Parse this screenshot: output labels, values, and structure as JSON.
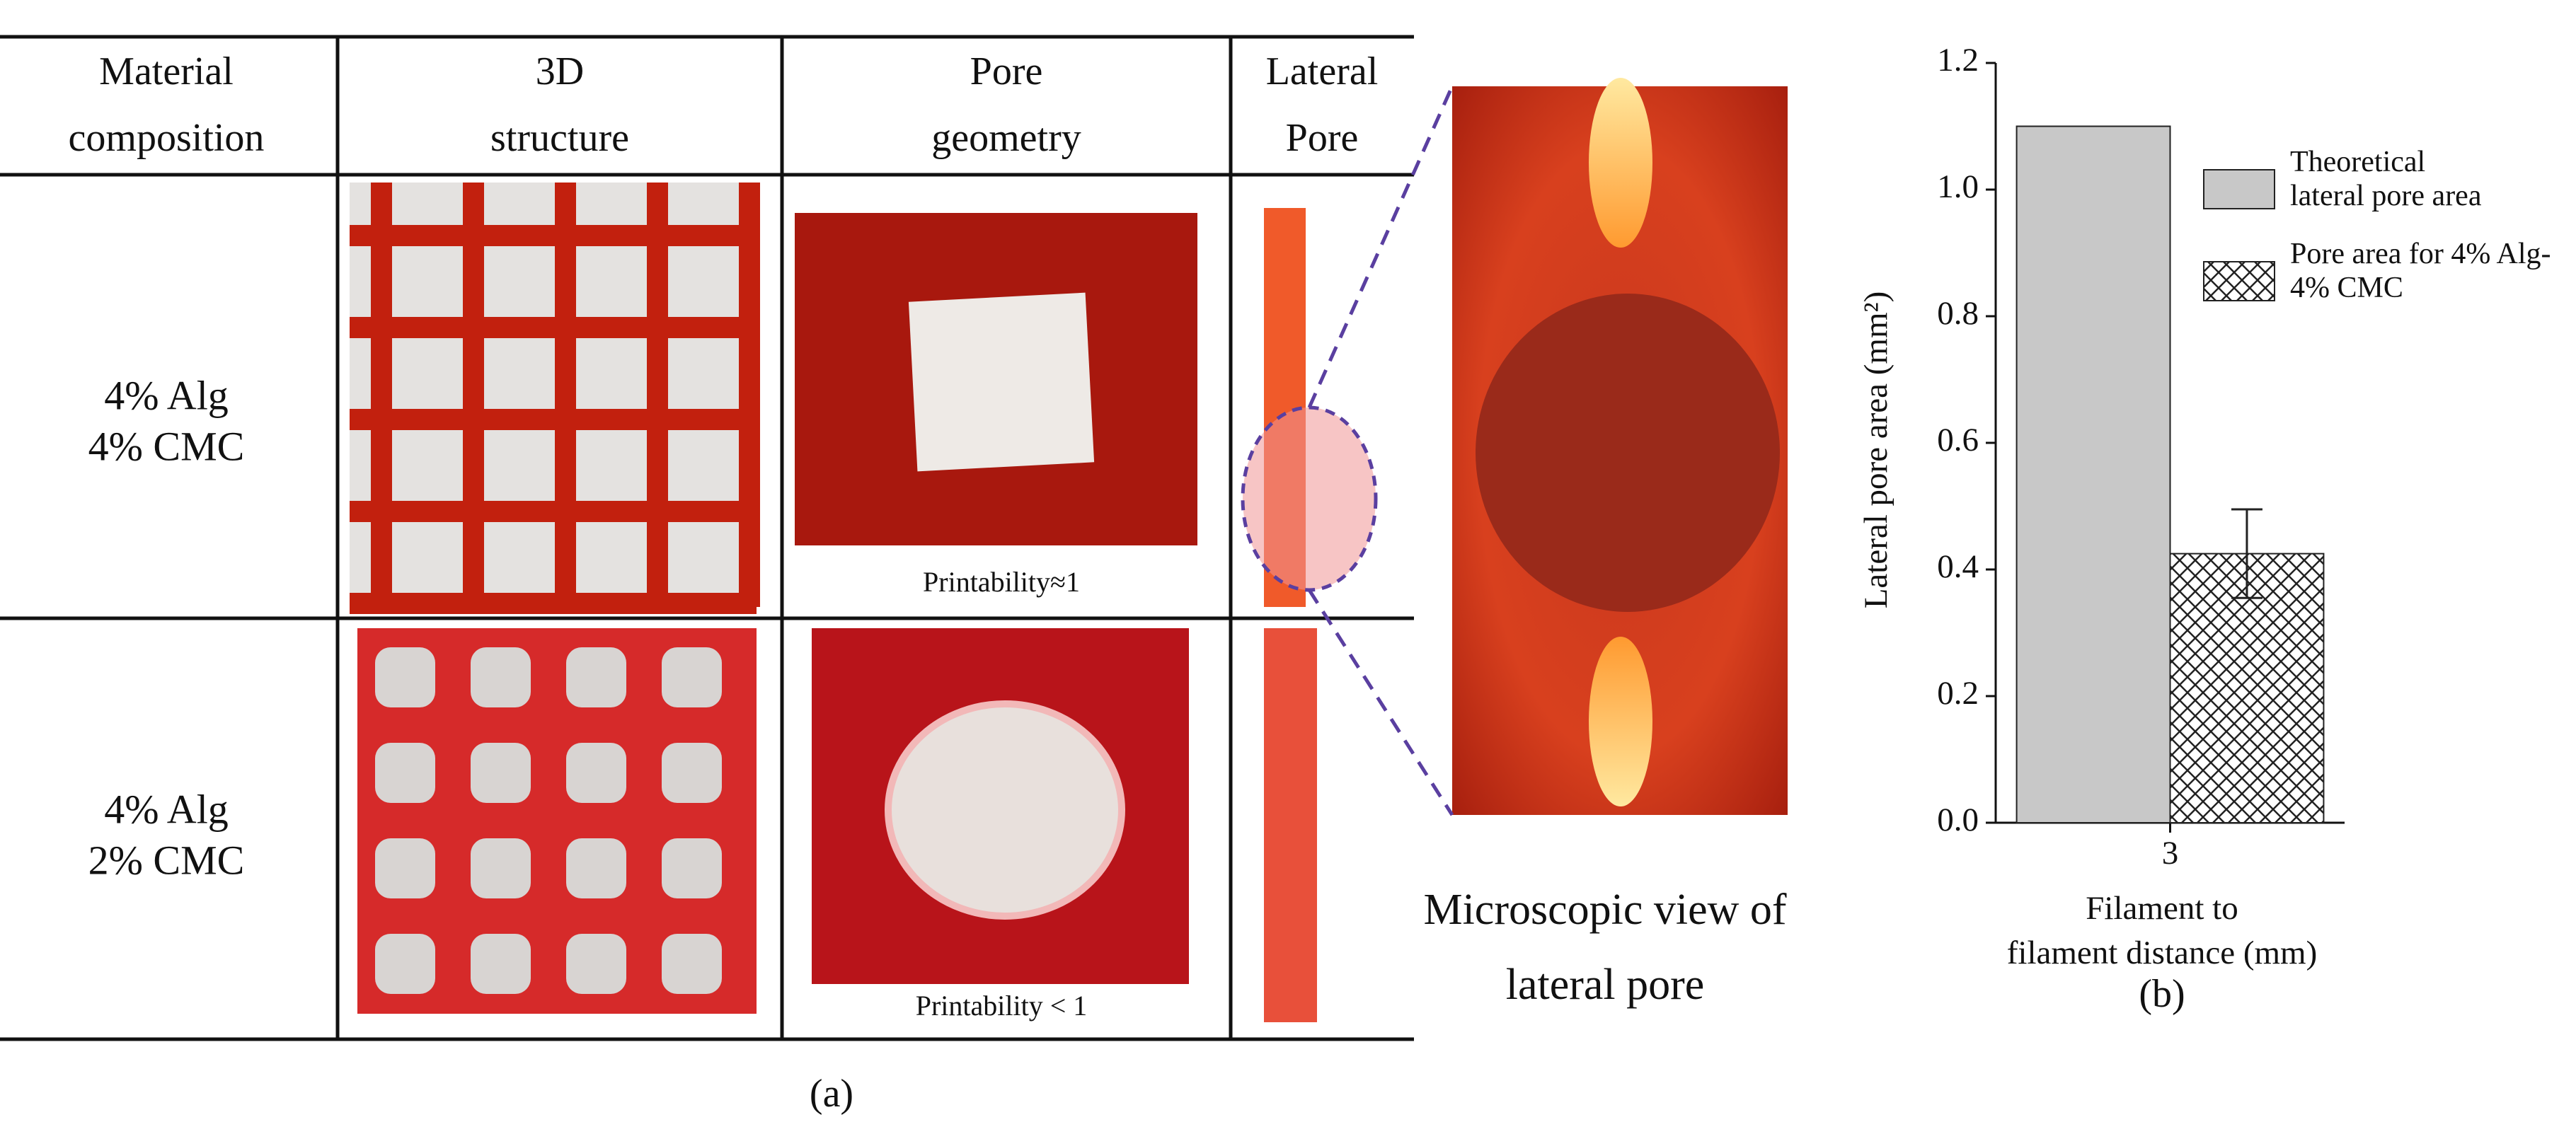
{
  "table": {
    "header": [
      [
        "Material",
        "composition"
      ],
      [
        "3D",
        "structure"
      ],
      [
        "Pore",
        "geometry"
      ],
      [
        "Lateral",
        "Pore"
      ]
    ],
    "rows": [
      {
        "composition": [
          "4% Alg",
          "4% CMC"
        ],
        "printability": "Printability≈1"
      },
      {
        "composition": [
          "4% Alg",
          "2% CMC"
        ],
        "printability": "Printability < 1"
      }
    ]
  },
  "micro_caption": [
    "Microscopic  view of",
    "lateral pore"
  ],
  "panel_a": "(a)",
  "chart_data": {
    "type": "bar",
    "categories": [
      "3"
    ],
    "series": [
      {
        "name": "Theoretical lateral pore area",
        "color": "#c8c8c8",
        "values": [
          1.1
        ]
      },
      {
        "name": "Pore area for 4% Alg-4% CMC",
        "color": "#ffffff",
        "hatch": "crosshatch",
        "values": [
          0.425
        ],
        "errors": [
          0.07
        ]
      }
    ],
    "y_label": "Lateral pore area (mm²)",
    "x_label": [
      "Filament to",
      "filament distance (mm)"
    ],
    "ylim": [
      0,
      1.2
    ],
    "yticks": [
      {
        "value": 0,
        "label": "0.0"
      },
      0.2,
      0.4,
      0.6,
      0.8,
      {
        "value": 1,
        "label": "1.0"
      },
      1.2
    ],
    "grid": false,
    "legend": "upper right",
    "panel_label": "(b)"
  }
}
